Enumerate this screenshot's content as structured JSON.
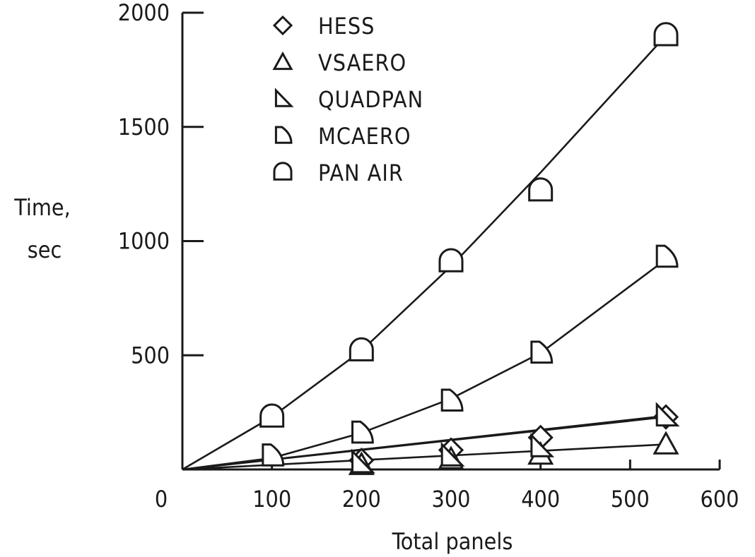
{
  "chart_data": {
    "type": "line",
    "title": "",
    "xlabel": "Total panels",
    "ylabel_lines": [
      "Time,",
      "sec"
    ],
    "xlim": [
      0,
      600
    ],
    "ylim": [
      0,
      2000
    ],
    "xticks": [
      0,
      100,
      200,
      300,
      400,
      500,
      600
    ],
    "yticks": [
      500,
      1000,
      1500,
      2000
    ],
    "grid": false,
    "legend_position": "top-left",
    "series": [
      {
        "name": "HESS",
        "marker": "diamond",
        "x": [
          200,
          300,
          400,
          540
        ],
        "y": [
          40,
          85,
          140,
          230
        ],
        "fit": [
          [
            0,
            0
          ],
          [
            540,
            230
          ]
        ]
      },
      {
        "name": "VSAERO",
        "marker": "triangle",
        "x": [
          200,
          300,
          400,
          540
        ],
        "y": [
          20,
          45,
          65,
          110
        ],
        "fit": [
          [
            0,
            0
          ],
          [
            540,
            110
          ]
        ]
      },
      {
        "name": "QUADPAN",
        "marker": "right-triangle",
        "x": [
          200,
          300,
          400,
          540
        ],
        "y": [
          30,
          60,
          100,
          235
        ],
        "fit": [
          [
            0,
            0
          ],
          [
            540,
            235
          ]
        ]
      },
      {
        "name": "MCAERO",
        "marker": "d-shape",
        "x": [
          100,
          200,
          300,
          400,
          540
        ],
        "y": [
          60,
          160,
          300,
          510,
          930
        ],
        "fit": [
          [
            0,
            0
          ],
          [
            100,
            50
          ],
          [
            200,
            160
          ],
          [
            300,
            310
          ],
          [
            400,
            510
          ],
          [
            540,
            920
          ]
        ]
      },
      {
        "name": "PAN AIR",
        "marker": "u-shape",
        "x": [
          100,
          200,
          300,
          400,
          540
        ],
        "y": [
          230,
          520,
          910,
          1220,
          1900
        ],
        "fit": [
          [
            0,
            0
          ],
          [
            100,
            230
          ],
          [
            200,
            520
          ],
          [
            300,
            890
          ],
          [
            400,
            1300
          ],
          [
            540,
            1900
          ]
        ]
      }
    ]
  }
}
